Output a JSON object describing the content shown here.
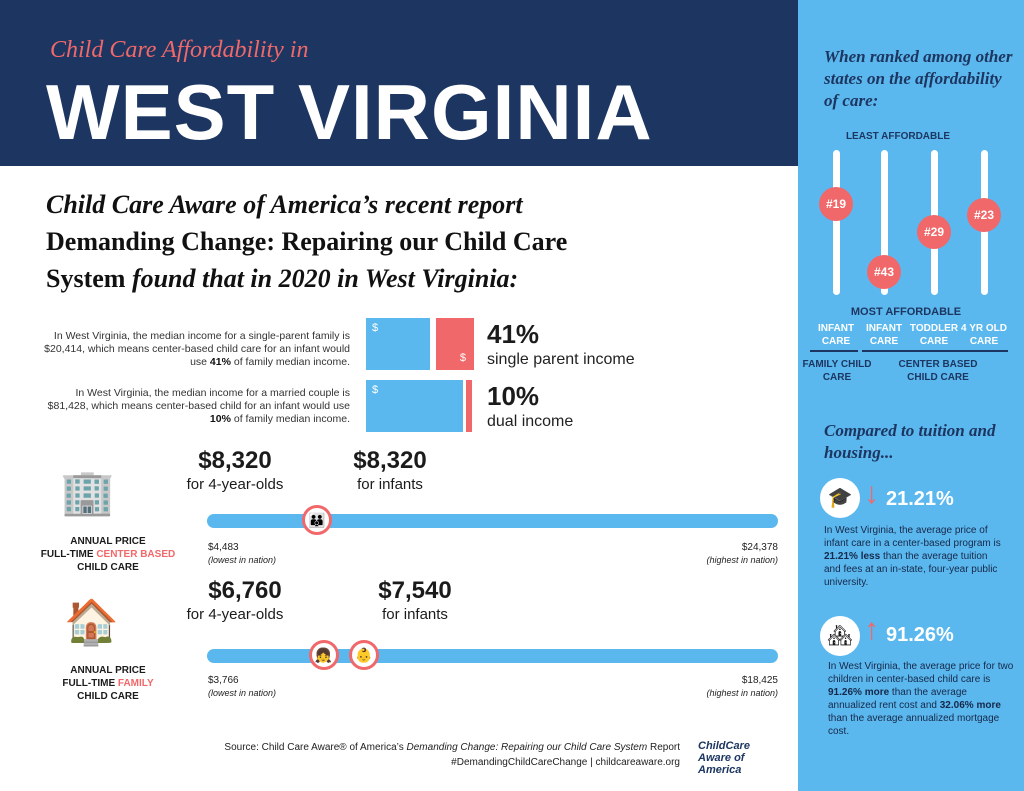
{
  "header": {
    "subtitle": "Child Care Affordability in",
    "title": "WEST VIRGINIA"
  },
  "intro": {
    "line1": "Child Care Aware of America’s recent report",
    "line2": "Demanding Change: Repairing our Child Care",
    "line3a": "System",
    "line3b": "found that in 2020 in West Virginia:"
  },
  "income": [
    {
      "text_a": "In West Virginia, the median income for a single-parent family is $20,414, which means center-based child care for an infant would use ",
      "bold": "41%",
      "text_b": " of family median income.",
      "pct": "41%",
      "label": "single parent income",
      "share": 41
    },
    {
      "text_a": "In West Virginia, the median income for a married couple is $81,428, which means center-based child for an infant would use ",
      "bold": "10%",
      "text_b": " of family median income.",
      "pct": "10%",
      "label": "dual income",
      "share": 10
    }
  ],
  "dollar_sign": "$",
  "center": {
    "caption_a": "ANNUAL PRICE",
    "caption_b": "FULL-TIME ",
    "caption_hl": "CENTER BASED",
    "caption_c": "CHILD CARE",
    "price_4yr": "$8,320",
    "label_4yr": "for 4-year-olds",
    "price_infant": "$8,320",
    "label_infant": "for infants",
    "min": "$4,483",
    "min_note": "(lowest in nation)",
    "max": "$24,378",
    "max_note": "(highest in nation)",
    "range": [
      4483,
      24378
    ],
    "values": [
      8320,
      8320
    ]
  },
  "family": {
    "caption_a": "ANNUAL PRICE",
    "caption_b": "FULL-TIME ",
    "caption_hl": "FAMILY",
    "caption_c": "CHILD CARE",
    "price_4yr": "$6,760",
    "label_4yr": "for 4-year-olds",
    "price_infant": "$7,540",
    "label_infant": "for infants",
    "min": "$3,766",
    "min_note": "(lowest in nation)",
    "max": "$18,425",
    "max_note": "(highest in nation)",
    "range": [
      3766,
      18425
    ],
    "values": [
      6760,
      7540
    ]
  },
  "footer": {
    "source_a": "Source: Child Care Aware® of America’s ",
    "source_i": "Demanding Change: Repairing our Child Care System",
    "source_b": " Report",
    "tags": "#DemandingChildCareChange | childcareaware.org",
    "logo": "ChildCare Aware of America"
  },
  "sidebar": {
    "rank_heading": "When ranked among other states on the affordability of care:",
    "least": "LEAST AFFORDABLE",
    "most": "MOST AFFORDABLE",
    "ranks": [
      {
        "rank": "#19",
        "n": 19,
        "cat": "INFANT CARE"
      },
      {
        "rank": "#43",
        "n": 43,
        "cat": "INFANT CARE"
      },
      {
        "rank": "#29",
        "n": 29,
        "cat": "TODDLER CARE"
      },
      {
        "rank": "#23",
        "n": 23,
        "cat": "4 YR OLD CARE"
      }
    ],
    "group1": "FAMILY CHILD CARE",
    "group2": "CENTER BASED CHILD CARE",
    "compare_heading": "Compared to tuition and housing...",
    "stat1": {
      "value": "21.21%",
      "a": "In West Virginia, the average price of infant care in a center-based program is ",
      "b": "21.21% less",
      "c": " than the average tuition and fees at an in-state, four-year public university."
    },
    "stat2": {
      "value": "91.26%",
      "a": "In West Virginia, the average price for two children in center-based child care is ",
      "b": "91.26% more",
      "c": " than the average annualized rent cost and ",
      "d": "32.06% more",
      "e": " than the average annualized mortgage cost."
    }
  },
  "colors": {
    "navy": "#1d3661",
    "blue": "#5bb8ee",
    "red": "#f0686a"
  }
}
